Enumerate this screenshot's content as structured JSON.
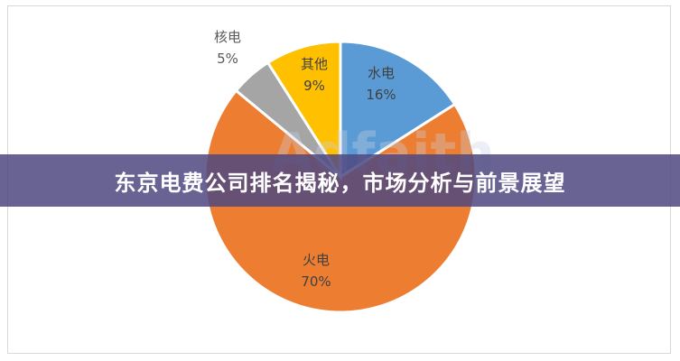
{
  "banner": {
    "title": "东京电费公司排名揭秘，市场分析与前景展望"
  },
  "watermark": "Adfaith",
  "chart_data": {
    "type": "pie",
    "start": "top",
    "direction": "clockwise",
    "slices": [
      {
        "label": "水电",
        "value": 16,
        "value_label": "16%",
        "color": "#5b9bd5"
      },
      {
        "label": "火电",
        "value": 70,
        "value_label": "70%",
        "color": "#ed7d31"
      },
      {
        "label": "核电",
        "value": 5,
        "value_label": "5%",
        "color": "#a5a5a5"
      },
      {
        "label": "其他",
        "value": 9,
        "value_label": "9%",
        "color": "#ffc000"
      }
    ]
  }
}
